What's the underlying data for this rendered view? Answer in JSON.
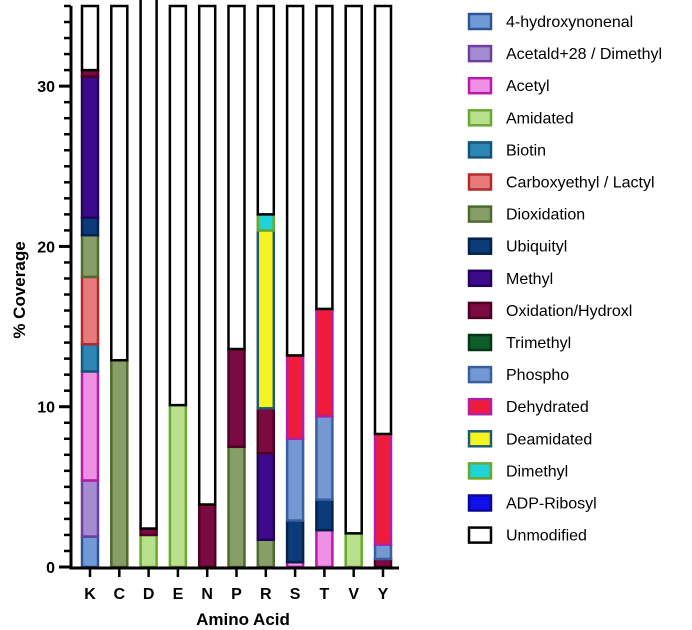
{
  "chart_data": {
    "type": "bar",
    "stacked": true,
    "title": "",
    "xlabel": "Amino Acid",
    "ylabel": "% Coverage",
    "ylim": [
      0,
      35
    ],
    "yticks": [
      0,
      10,
      20,
      30
    ],
    "categories": [
      "K",
      "C",
      "D",
      "E",
      "N",
      "P",
      "R",
      "S",
      "T",
      "V",
      "Y"
    ],
    "series": [
      {
        "name": "4-hydroxynonenal",
        "fill": "#6f9ad6",
        "stroke": "#2f5597",
        "values": [
          1.9,
          0,
          0,
          0,
          0,
          0,
          0,
          0,
          0,
          0,
          0
        ]
      },
      {
        "name": "Acetald+28 / Dimethyl",
        "fill": "#a38dd0",
        "stroke": "#6b3fa0",
        "values": [
          3.5,
          0,
          0,
          0,
          0,
          0,
          0,
          0,
          0,
          0,
          0
        ]
      },
      {
        "name": "Acetyl",
        "fill": "#ef8fe6",
        "stroke": "#b31ea6",
        "values": [
          6.8,
          0,
          0,
          0,
          0,
          0,
          0,
          0.3,
          2.3,
          0,
          0
        ]
      },
      {
        "name": "Amidated",
        "fill": "#b9e08a",
        "stroke": "#6aa832",
        "values": [
          0,
          0,
          2.0,
          10.1,
          0,
          0,
          0,
          0,
          0,
          2.1,
          0
        ]
      },
      {
        "name": "Biotin",
        "fill": "#2d86b3",
        "stroke": "#14567a",
        "values": [
          1.7,
          0,
          0,
          0,
          0,
          0,
          0,
          0,
          0,
          0,
          0
        ]
      },
      {
        "name": "Carboxyethyl / Lactyl",
        "fill": "#e77b7b",
        "stroke": "#b32a2a",
        "values": [
          4.2,
          0,
          0,
          0,
          0,
          0,
          0,
          0,
          0,
          0,
          0
        ]
      },
      {
        "name": "Dioxidation",
        "fill": "#879e68",
        "stroke": "#4e6a2e",
        "values": [
          2.6,
          12.9,
          0,
          0,
          0,
          7.5,
          1.7,
          0,
          0,
          0,
          0
        ]
      },
      {
        "name": "Ubiquityl",
        "fill": "#0b3b7a",
        "stroke": "#05224a",
        "values": [
          1.1,
          0,
          0,
          0,
          0,
          0,
          0,
          2.6,
          1.9,
          0,
          0
        ]
      },
      {
        "name": "Methyl",
        "fill": "#3e0a8c",
        "stroke": "#23045a",
        "values": [
          8.8,
          0,
          0,
          0,
          0,
          0,
          5.4,
          0,
          0,
          0,
          0
        ]
      },
      {
        "name": "Oxidation/Hydroxl",
        "fill": "#7b0a40",
        "stroke": "#4a0322",
        "values": [
          0.4,
          0,
          0.4,
          0,
          3.9,
          6.1,
          2.8,
          0,
          0,
          0,
          0.5
        ]
      },
      {
        "name": "Trimethyl",
        "fill": "#0e5e2c",
        "stroke": "#063617",
        "values": [
          0,
          0,
          0,
          0,
          0,
          0,
          0,
          0,
          0,
          0,
          0
        ]
      },
      {
        "name": "Phospho",
        "fill": "#7398d2",
        "stroke": "#3a5fa0",
        "values": [
          0,
          0,
          0,
          0,
          0,
          0,
          0,
          5.1,
          5.2,
          0,
          0.9
        ]
      },
      {
        "name": "Dehydrated",
        "fill": "#ee1c3a",
        "stroke": "#b01fa8",
        "values": [
          0,
          0,
          0,
          0,
          0,
          0,
          0,
          5.2,
          6.7,
          0,
          6.9
        ]
      },
      {
        "name": "Deamidated",
        "fill": "#f6f323",
        "stroke": "#1f5c72",
        "values": [
          0,
          0,
          0,
          0,
          0,
          0,
          11.1,
          0,
          0,
          0,
          0
        ]
      },
      {
        "name": "Dimethyl",
        "fill": "#1fd3d6",
        "stroke": "#6aa832",
        "values": [
          0,
          0,
          0,
          0,
          0,
          0,
          1.0,
          0,
          0,
          0,
          0
        ]
      },
      {
        "name": "ADP-Ribosyl",
        "fill": "#1010ee",
        "stroke": "#0a0a90",
        "values": [
          0,
          0,
          0,
          0,
          0,
          0,
          0,
          0,
          0,
          0,
          0
        ]
      },
      {
        "name": "Unmodified",
        "fill": "#ffffff",
        "stroke": "#000000",
        "values": [
          4.0,
          22.1,
          33.1,
          24.9,
          31.1,
          21.4,
          13.0,
          21.8,
          18.9,
          32.9,
          26.7
        ]
      }
    ]
  }
}
